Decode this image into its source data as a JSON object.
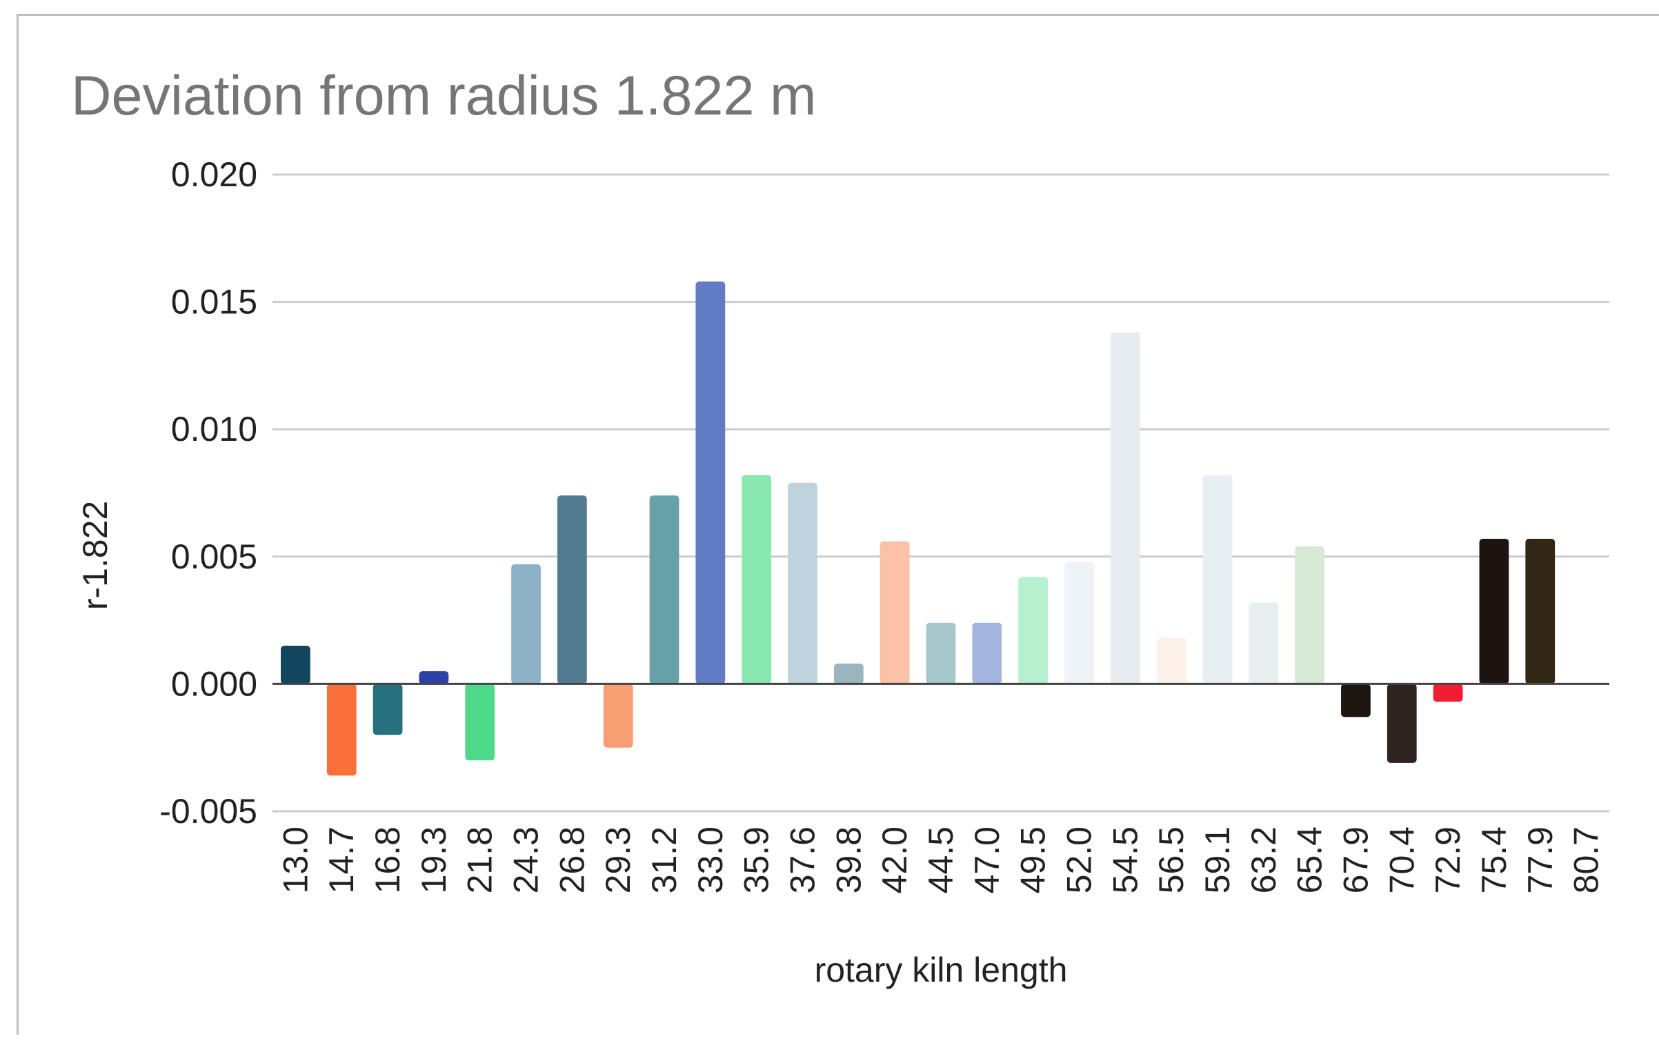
{
  "chart_data": {
    "type": "bar",
    "title": "Deviation from radius 1.822 m",
    "xlabel": "rotary kiln length",
    "ylabel": "r-1.822",
    "ylim": [
      -0.005,
      0.02
    ],
    "yticks": [
      "-0.005",
      "0.000",
      "0.005",
      "0.010",
      "0.015",
      "0.020"
    ],
    "grid": true,
    "categories": [
      "13.0",
      "14.7",
      "16.8",
      "19.3",
      "21.8",
      "24.3",
      "26.8",
      "29.3",
      "31.2",
      "33.0",
      "35.9",
      "37.6",
      "39.8",
      "42.0",
      "44.5",
      "47.0",
      "49.5",
      "52.0",
      "54.5",
      "56.5",
      "59.1",
      "63.2",
      "65.4",
      "67.9",
      "70.4",
      "72.9",
      "75.4",
      "77.9",
      "80.7"
    ],
    "values": [
      0.0015,
      -0.0036,
      -0.002,
      0.0005,
      -0.003,
      0.0047,
      0.0074,
      -0.0025,
      0.0074,
      0.0158,
      0.0082,
      0.0079,
      0.0008,
      0.0056,
      0.0024,
      0.0024,
      0.0042,
      0.0048,
      0.0138,
      0.0018,
      0.0082,
      0.0032,
      0.0054,
      -0.0013,
      -0.0031,
      -0.0007,
      0.0057,
      0.0057,
      0
    ],
    "colors": [
      "#12465e",
      "#f96f3a",
      "#26717d",
      "#2d3fa8",
      "#4fd98a",
      "#8db2c7",
      "#527b91",
      "#f79e72",
      "#67a2a8",
      "#627cc3",
      "#89e8b0",
      "#bed3de",
      "#9cb4be",
      "#fbc2a7",
      "#a6c7cc",
      "#a3b5de",
      "#b6f0cf",
      "#eef3f7",
      "#e6ecef",
      "#fdf1ea",
      "#e8eff2",
      "#e8eff1",
      "#d5e9d5",
      "#1d1510",
      "#2f2320",
      "#f21c33",
      "#1c150f",
      "#322615",
      "#ffffff"
    ]
  }
}
